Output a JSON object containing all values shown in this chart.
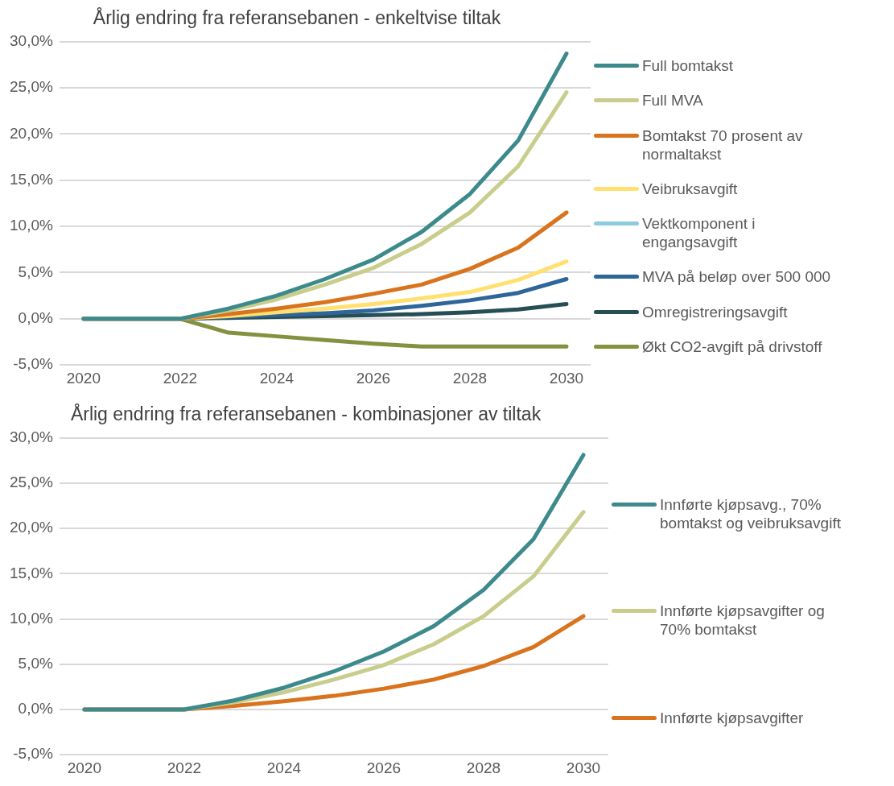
{
  "chart_data": [
    {
      "type": "line",
      "title": "Årlig endring fra referansebanen - enkeltvise tiltak",
      "categories": [
        "2020",
        null,
        "2022",
        null,
        "2024",
        null,
        "2026",
        null,
        "2028",
        null,
        "2030"
      ],
      "ylim": [
        -5,
        30
      ],
      "yticks": [
        {
          "value": -5,
          "label": "-5,0%"
        },
        {
          "value": 0,
          "label": "0,0%"
        },
        {
          "value": 5,
          "label": "5,0%"
        },
        {
          "value": 10,
          "label": "10,0%"
        },
        {
          "value": 15,
          "label": "15,0%"
        },
        {
          "value": 20,
          "label": "20,0%"
        },
        {
          "value": 25,
          "label": "25,0%"
        },
        {
          "value": 30,
          "label": "30,0%"
        }
      ],
      "grid": "y",
      "legend": "right",
      "marker": "none",
      "line_style": "solid",
      "series": [
        {
          "name": "Full bomtakst",
          "color": "#3d8a8c",
          "values": [
            0,
            0,
            0,
            1.1,
            2.5,
            4.3,
            6.4,
            9.4,
            13.5,
            19.3,
            28.7
          ]
        },
        {
          "name": "Full MVA",
          "color": "#c8cd8c",
          "values": [
            0,
            0,
            0,
            0.9,
            2.1,
            3.7,
            5.5,
            8.1,
            11.5,
            16.5,
            24.5
          ]
        },
        {
          "name": "Bomtakst 70 prosent av normaltakst",
          "color": "#d9731e",
          "values": [
            0,
            0,
            0,
            0.5,
            1.1,
            1.8,
            2.7,
            3.7,
            5.4,
            7.7,
            11.5
          ]
        },
        {
          "name": "Veibruksavgift",
          "color": "#ffe070",
          "values": [
            0,
            0,
            0,
            0.3,
            0.7,
            1.1,
            1.6,
            2.2,
            2.9,
            4.2,
            6.2
          ]
        },
        {
          "name": "Vektkomponent i engangsavgift",
          "color": "#8ecae0",
          "values": [
            null,
            null,
            null,
            null,
            null,
            null,
            null,
            null,
            null,
            null,
            null
          ]
        },
        {
          "name": "MVA på beløp over 500 000",
          "color": "#2f6699",
          "values": [
            0,
            0,
            0,
            0.2,
            0.4,
            0.6,
            0.9,
            1.4,
            2.0,
            2.8,
            4.3
          ]
        },
        {
          "name": "Omregistreringsavgift",
          "color": "#264f55",
          "values": [
            0,
            0,
            0,
            0.1,
            0.2,
            0.3,
            0.4,
            0.5,
            0.7,
            1.0,
            1.6
          ]
        },
        {
          "name": "Økt CO2-avgift på drivstoff",
          "color": "#84913f",
          "values": [
            0,
            0,
            0,
            -1.5,
            -1.9,
            -2.3,
            -2.7,
            -3.0,
            -3.0,
            -3.0,
            -3.0
          ]
        }
      ]
    },
    {
      "type": "line",
      "title": "Årlig endring fra referansebanen - kombinasjoner av tiltak",
      "categories": [
        "2020",
        null,
        "2022",
        null,
        "2024",
        null,
        "2026",
        null,
        "2028",
        null,
        "2030"
      ],
      "ylim": [
        -5,
        30
      ],
      "yticks": [
        {
          "value": -5,
          "label": "-5,0%"
        },
        {
          "value": 0,
          "label": "0,0%"
        },
        {
          "value": 5,
          "label": "5,0%"
        },
        {
          "value": 10,
          "label": "10,0%"
        },
        {
          "value": 15,
          "label": "15,0%"
        },
        {
          "value": 20,
          "label": "20,0%"
        },
        {
          "value": 25,
          "label": "25,0%"
        },
        {
          "value": 30,
          "label": "30,0%"
        }
      ],
      "grid": "y",
      "legend": "right",
      "marker": "none",
      "line_style": "solid",
      "series": [
        {
          "name": "Innførte kjøpsavg., 70% bomtakst og veibruksavgift",
          "color": "#3d8a8c",
          "values": [
            0,
            0,
            0,
            1.0,
            2.4,
            4.2,
            6.4,
            9.2,
            13.2,
            18.8,
            28.1
          ]
        },
        {
          "name": "Innførte kjøpsavgifter og 70% bomtakst",
          "color": "#c8cd8c",
          "values": [
            0,
            0,
            0,
            0.8,
            1.9,
            3.3,
            4.9,
            7.2,
            10.3,
            14.7,
            21.8
          ]
        },
        {
          "name": "Innførte kjøpsavgifter",
          "color": "#d9731e",
          "values": [
            0,
            0,
            0,
            0.4,
            0.9,
            1.5,
            2.3,
            3.3,
            4.8,
            6.9,
            10.3
          ]
        }
      ]
    }
  ]
}
